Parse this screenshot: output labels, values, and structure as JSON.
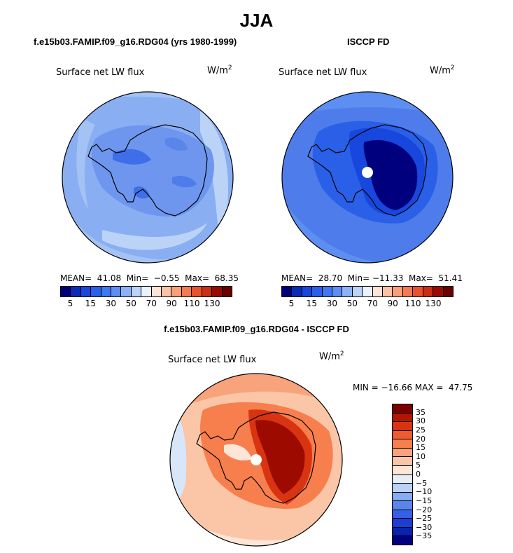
{
  "figure": {
    "season": "JJA"
  },
  "panels": [
    {
      "case_title": "f.e15b03.FAMIP.f09_g16.RDG04 (yrs 1980-1999)",
      "variable_label": "Surface net LW flux",
      "units_base": "W/m",
      "units_exp": "2",
      "stats_text": "MEAN=  41.08  Min=  −0.55  Max=  68.35"
    },
    {
      "case_title": "ISCCP FD",
      "variable_label": "Surface net LW flux",
      "units_base": "W/m",
      "units_exp": "2",
      "stats_text": "MEAN=  28.70  Min= −11.33  Max=  51.41"
    },
    {
      "case_title": "f.e15b03.FAMIP.f09_g16.RDG04 - ISCCP FD",
      "variable_label": "Surface net LW flux",
      "units_base": "W/m",
      "units_exp": "2",
      "stats_text": "MIN = −16.66 MAX =  47.75"
    }
  ],
  "chart_data": [
    {
      "type": "heatmap",
      "projection": "south polar stereographic",
      "title": "Surface net LW flux",
      "units": "W/m2",
      "statistics": {
        "mean": 41.08,
        "min": -0.55,
        "max": 68.35
      },
      "colorbar": {
        "levels": [
          5,
          10,
          15,
          20,
          30,
          40,
          50,
          60,
          70,
          80,
          90,
          100,
          110,
          120,
          130
        ],
        "tick_labels": [
          "5",
          "15",
          "30",
          "50",
          "70",
          "90",
          "110",
          "130"
        ],
        "colors": [
          "#00007f",
          "#0a2bb5",
          "#1747dc",
          "#2a5fe8",
          "#3f78f0",
          "#5d8ff2",
          "#8db2f6",
          "#bcd3f8",
          "#ecf2fb",
          "#fde4d6",
          "#fbc3a7",
          "#f9a07b",
          "#f47a52",
          "#e8522c",
          "#c92f14",
          "#990a00",
          "#6a0000"
        ]
      }
    },
    {
      "type": "heatmap",
      "projection": "south polar stereographic",
      "title": "Surface net LW flux",
      "units": "W/m2",
      "statistics": {
        "mean": 28.7,
        "min": -11.33,
        "max": 51.41
      },
      "colorbar": {
        "levels": [
          5,
          10,
          15,
          20,
          30,
          40,
          50,
          60,
          70,
          80,
          90,
          100,
          110,
          120,
          130
        ],
        "tick_labels": [
          "5",
          "15",
          "30",
          "50",
          "70",
          "90",
          "110",
          "130"
        ],
        "colors": [
          "#00007f",
          "#0a2bb5",
          "#1747dc",
          "#2a5fe8",
          "#3f78f0",
          "#5d8ff2",
          "#8db2f6",
          "#bcd3f8",
          "#ecf2fb",
          "#fde4d6",
          "#fbc3a7",
          "#f9a07b",
          "#f47a52",
          "#e8522c",
          "#c92f14",
          "#990a00",
          "#6a0000"
        ]
      }
    },
    {
      "type": "heatmap",
      "projection": "south polar stereographic",
      "title": "Surface net LW flux",
      "units": "W/m2",
      "statistics": {
        "min": -16.66,
        "max": 47.75
      },
      "colorbar": {
        "orientation": "vertical",
        "levels": [
          35,
          30,
          25,
          20,
          15,
          10,
          5,
          0,
          -5,
          -10,
          -15,
          -20,
          -25,
          -30,
          -35
        ],
        "tick_labels": [
          "35",
          "30",
          "25",
          "20",
          "15",
          "10",
          "5",
          "0",
          "−5",
          "−10",
          "−15",
          "−20",
          "−25",
          "−30",
          "−35"
        ],
        "colors": [
          "#7a0000",
          "#b21500",
          "#d93412",
          "#ef5a2e",
          "#f77f4d",
          "#f9a37c",
          "#fbc6a7",
          "#fde6d8",
          "#e6eef9",
          "#b9d2f6",
          "#86acf2",
          "#5a86ec",
          "#3560e4",
          "#1a3ed6",
          "#0a22b0",
          "#000080"
        ]
      }
    }
  ]
}
